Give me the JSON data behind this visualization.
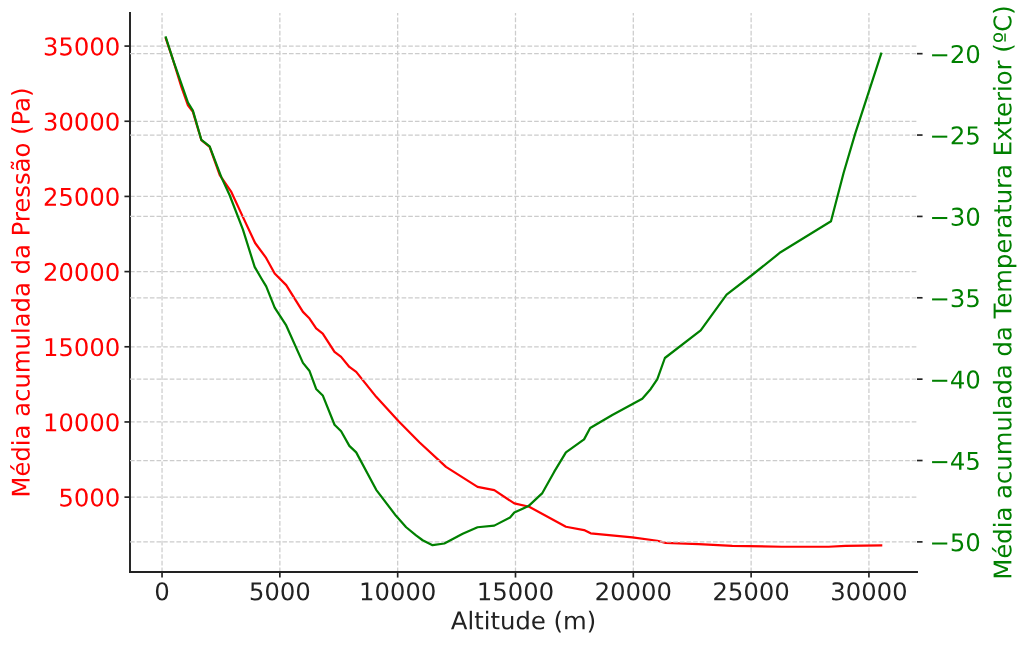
{
  "chart_data": {
    "type": "line",
    "xlabel": "Altitude (m)",
    "ylabel": "Média acumulada da Pressão (Pa)",
    "y2label": "Média acumulada da Temperatura Exterior (ºC)",
    "xlim": [
      -1360,
      32040
    ],
    "xticks": [
      0,
      5000,
      10000,
      15000,
      20000,
      25000,
      30000
    ],
    "ylim": [
      20,
      37200
    ],
    "yticks": [
      5000,
      10000,
      15000,
      20000,
      25000,
      30000,
      35000
    ],
    "y2lim": [
      -51.85,
      -17.5
    ],
    "y2ticks": [
      {
        "value": -20,
        "label": "−20"
      },
      {
        "value": -25,
        "label": "−25"
      },
      {
        "value": -30,
        "label": "−30"
      },
      {
        "value": -35,
        "label": "−35"
      },
      {
        "value": -40,
        "label": "−40"
      },
      {
        "value": -45,
        "label": "−45"
      },
      {
        "value": -50,
        "label": "−50"
      }
    ],
    "grid": true,
    "series": [
      {
        "color": "#ff0000",
        "x": [
          160,
          470,
          820,
          1100,
          1310,
          1670,
          2020,
          2450,
          2940,
          3430,
          3950,
          4400,
          4780,
          5270,
          5980,
          6260,
          6540,
          6820,
          7320,
          7600,
          7950,
          8240,
          9090,
          10040,
          10920,
          12050,
          13390,
          14100,
          14950,
          15580,
          17140,
          17910,
          18190,
          19960,
          21020,
          21370,
          22780,
          24200,
          26310,
          28290,
          29000,
          30520
        ],
        "values": [
          35510,
          34060,
          32280,
          31060,
          30620,
          28740,
          28290,
          26410,
          25300,
          23640,
          21900,
          20950,
          19870,
          19100,
          17320,
          16880,
          16220,
          15880,
          14660,
          14330,
          13660,
          13330,
          11670,
          10050,
          8650,
          7010,
          5680,
          5470,
          4580,
          4360,
          3030,
          2810,
          2590,
          2320,
          2100,
          1960,
          1870,
          1760,
          1700,
          1700,
          1760,
          1790
        ]
      },
      {
        "color": "#008000",
        "axis": "y2",
        "x": [
          160,
          470,
          1100,
          1310,
          1670,
          2020,
          2520,
          2870,
          3430,
          3930,
          4210,
          4420,
          4780,
          5270,
          5980,
          6260,
          6540,
          6820,
          7320,
          7600,
          7950,
          8240,
          9090,
          9930,
          10360,
          10780,
          11060,
          11480,
          11980,
          12760,
          13390,
          14100,
          14770,
          14950,
          15550,
          16140,
          16640,
          17140,
          17910,
          18170,
          19110,
          20380,
          20740,
          21020,
          21340,
          22860,
          23960,
          25040,
          26250,
          28390,
          28930,
          29420,
          30520
        ],
        "values": [
          -19.0,
          -20.4,
          -23.0,
          -23.5,
          -25.3,
          -25.7,
          -27.6,
          -28.7,
          -30.8,
          -33.1,
          -33.8,
          -34.3,
          -35.6,
          -36.7,
          -39.0,
          -39.5,
          -40.6,
          -41.0,
          -42.8,
          -43.2,
          -44.1,
          -44.5,
          -46.8,
          -48.4,
          -49.1,
          -49.6,
          -49.9,
          -50.2,
          -50.1,
          -49.5,
          -49.1,
          -49.0,
          -48.5,
          -48.2,
          -47.8,
          -47.0,
          -45.7,
          -44.5,
          -43.7,
          -43.0,
          -42.2,
          -41.2,
          -40.6,
          -40.0,
          -38.7,
          -37.0,
          -34.8,
          -33.6,
          -32.2,
          -30.3,
          -27.3,
          -24.9,
          -20.0
        ]
      }
    ]
  }
}
